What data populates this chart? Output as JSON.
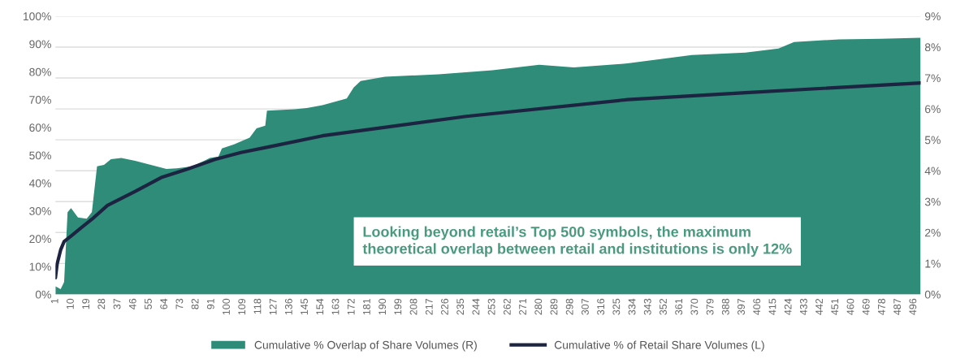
{
  "chart_data": {
    "type": "line",
    "series": [
      {
        "name": "Cumulative % Overlap of Share Volumes (R)",
        "type": "area",
        "axis": "y2",
        "color": "#2f8c78",
        "x": [
          1,
          4,
          6,
          8,
          10,
          14,
          19,
          22,
          25,
          29,
          33,
          39,
          47,
          56,
          65,
          71,
          80,
          90,
          95,
          97,
          104,
          113,
          117,
          122,
          123,
          139,
          146,
          155,
          169,
          173,
          177,
          191,
          222,
          253,
          280,
          300,
          331,
          368,
          399,
          418,
          427,
          453,
          477,
          500
        ],
        "values": [
          0.26,
          0.17,
          0.4,
          2.66,
          2.79,
          2.49,
          2.45,
          2.66,
          4.14,
          4.19,
          4.37,
          4.41,
          4.32,
          4.19,
          4.06,
          4.08,
          4.14,
          4.41,
          4.46,
          4.72,
          4.85,
          5.07,
          5.37,
          5.46,
          5.94,
          5.99,
          6.03,
          6.12,
          6.34,
          6.69,
          6.9,
          7.04,
          7.12,
          7.25,
          7.43,
          7.34,
          7.47,
          7.74,
          7.82,
          7.95,
          8.16,
          8.25,
          8.27,
          8.3
        ]
      },
      {
        "name": "Cumulative % of Retail Share Volumes (L)",
        "axis": "y",
        "color": "#1c2442",
        "x": [
          1,
          2,
          4,
          6,
          10,
          16,
          22,
          31,
          47,
          62,
          77,
          93,
          108,
          124,
          155,
          238,
          331,
          399,
          500
        ],
        "values": [
          6,
          11,
          16,
          19,
          21,
          24,
          27,
          32,
          37,
          42,
          45,
          48.5,
          51,
          53,
          57,
          64,
          70,
          72.5,
          76
        ]
      }
    ],
    "xlim": [
      1,
      500
    ],
    "xticks": [
      1,
      10,
      19,
      28,
      37,
      46,
      55,
      64,
      73,
      82,
      91,
      100,
      109,
      118,
      127,
      136,
      145,
      154,
      163,
      172,
      181,
      190,
      199,
      208,
      217,
      226,
      235,
      244,
      253,
      262,
      271,
      280,
      289,
      298,
      307,
      316,
      325,
      334,
      343,
      352,
      361,
      370,
      379,
      388,
      397,
      406,
      415,
      424,
      433,
      442,
      451,
      460,
      469,
      478,
      487,
      496
    ],
    "ylim": [
      0,
      100
    ],
    "yticks": [
      {
        "value": 0,
        "label": "0%"
      },
      {
        "value": 10,
        "label": "10%"
      },
      {
        "value": 20,
        "label": "20%"
      },
      {
        "value": 30,
        "label": "30%"
      },
      {
        "value": 40,
        "label": "40%"
      },
      {
        "value": 50,
        "label": "50%"
      },
      {
        "value": 60,
        "label": "60%"
      },
      {
        "value": 70,
        "label": "70%"
      },
      {
        "value": 80,
        "label": "80%"
      },
      {
        "value": 90,
        "label": "90%"
      },
      {
        "value": 100,
        "label": "100%"
      }
    ],
    "y2lim": [
      0,
      9
    ],
    "y2ticks": [
      {
        "value": 0,
        "label": "0%"
      },
      {
        "value": 1,
        "label": "1%"
      },
      {
        "value": 2,
        "label": "2%"
      },
      {
        "value": 3,
        "label": "3%"
      },
      {
        "value": 4,
        "label": "4%"
      },
      {
        "value": 5,
        "label": "5%"
      },
      {
        "value": 6,
        "label": "6%"
      },
      {
        "value": 7,
        "label": "7%"
      },
      {
        "value": 8,
        "label": "8%"
      },
      {
        "value": 9,
        "label": "9%"
      }
    ],
    "grid": "y",
    "legend": "bottom",
    "annotations": [
      "Looking beyond retail’s Top 500 symbols, the maximum\ntheoretical overlap between retail and institutions is only 12%"
    ]
  }
}
